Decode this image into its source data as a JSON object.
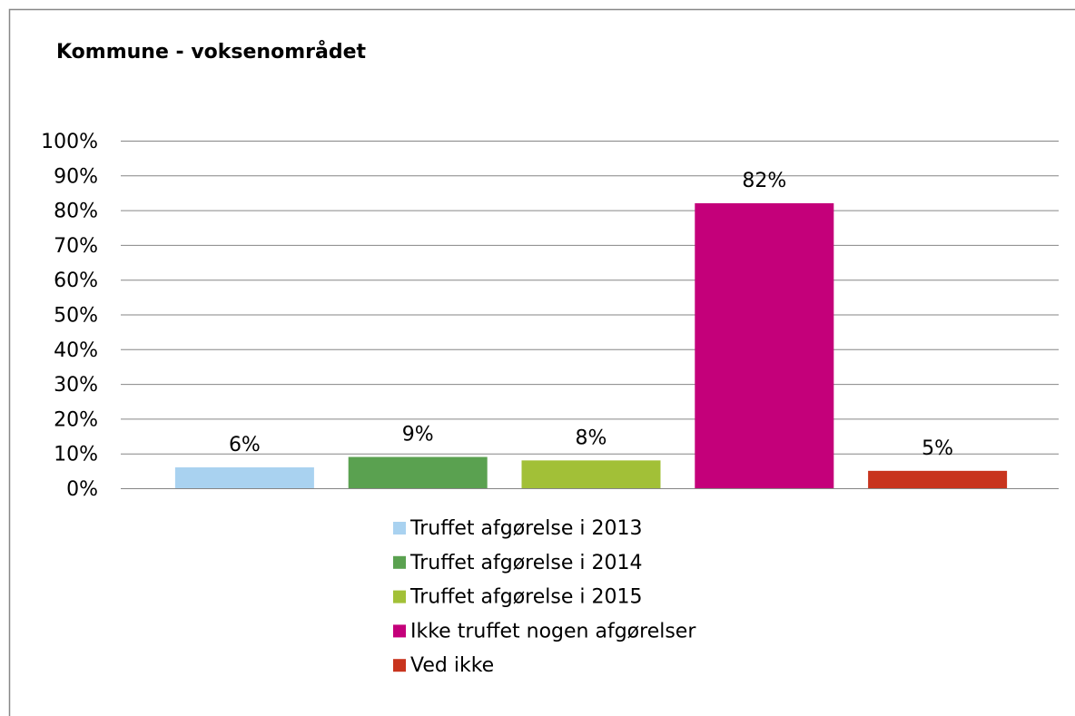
{
  "chart_data": {
    "type": "bar",
    "title": "Kommune - voksenområdet",
    "series": [
      {
        "name": "Truffet afgørelse i 2013",
        "color": "#a9d2f0",
        "values": [
          6
        ],
        "value_labels": [
          "6%"
        ]
      },
      {
        "name": "Truffet afgørelse i 2014",
        "color": "#5aa150",
        "values": [
          9
        ],
        "value_labels": [
          "9%"
        ]
      },
      {
        "name": "Truffet afgørelse i 2015",
        "color": "#a2c037",
        "values": [
          8
        ],
        "value_labels": [
          "8%"
        ]
      },
      {
        "name": "Ikke truffet nogen afgørelser",
        "color": "#c4007a",
        "values": [
          82
        ],
        "value_labels": [
          "82%"
        ]
      },
      {
        "name": "Ved ikke",
        "color": "#c8341e",
        "values": [
          5
        ],
        "value_labels": [
          "5%"
        ]
      }
    ],
    "ylim": [
      0,
      100
    ],
    "yticks": [
      {
        "value": 0,
        "label": "0%"
      },
      {
        "value": 10,
        "label": "10%"
      },
      {
        "value": 20,
        "label": "20%"
      },
      {
        "value": 30,
        "label": "30%"
      },
      {
        "value": 40,
        "label": "40%"
      },
      {
        "value": 50,
        "label": "50%"
      },
      {
        "value": 60,
        "label": "60%"
      },
      {
        "value": 70,
        "label": "70%"
      },
      {
        "value": 80,
        "label": "80%"
      },
      {
        "value": 90,
        "label": "90%"
      },
      {
        "value": 100,
        "label": "100%"
      }
    ],
    "grid": true,
    "legend": "bottom"
  }
}
